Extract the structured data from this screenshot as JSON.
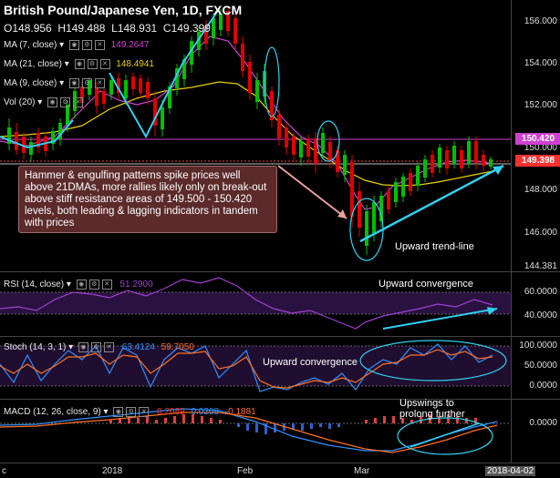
{
  "header": {
    "title": "British Pound/Japanese Yen, 1D, FXCM",
    "ohlc": {
      "o_label": "O",
      "o": "148.956",
      "h_label": "H",
      "h": "149.488",
      "l_label": "L",
      "l": "148.931",
      "c_label": "C",
      "c": "149.399"
    }
  },
  "indicators": {
    "ma7": {
      "label": "MA (7, close)",
      "value": "149.2647",
      "color": "#d040d0"
    },
    "ma21": {
      "label": "MA (21, close)",
      "value": "148.4941",
      "color": "#e8d000"
    },
    "ma9": {
      "label": "MA (9, close)"
    },
    "vol": {
      "label": "Vol (20)"
    }
  },
  "price_axis": {
    "ticks": [
      "156.000",
      "154.000",
      "152.000",
      "150.000",
      "148.000",
      "146.000",
      "144.381"
    ],
    "resistance_label": "150.420",
    "current_label": "149.398"
  },
  "annotations": {
    "note": "Hammer & engulfing patterns spike prices well above 21DMAs, more rallies likely only on break-out above stiff resistance areas of 149.500 - 150.420 levels, both leading & lagging indicators in tandem with prices",
    "trendline": "Upward trend-line",
    "rsi_conv": "Upward convergence",
    "stoch_conv": "Upward convergence",
    "macd_note": "Upswings to prolong further"
  },
  "rsi": {
    "label": "RSI (14, close)",
    "value": "51.2900",
    "ticks": [
      "60.0000",
      "40.0000"
    ]
  },
  "stoch": {
    "label": "Stoch (14, 3, 1)",
    "k": "63.4124",
    "d": "59.7050",
    "ticks": [
      "100.0000",
      "50.0000",
      "0.0000"
    ]
  },
  "macd": {
    "label": "MACD (12, 26, close, 9)",
    "v1": "0.2089",
    "v2": "0.0208",
    "v3": "-0.1881",
    "ticks": [
      "0.0000"
    ]
  },
  "xaxis": {
    "labels": [
      "c",
      "2018",
      "Feb",
      "Mar",
      "2018-04-02"
    ]
  }
}
